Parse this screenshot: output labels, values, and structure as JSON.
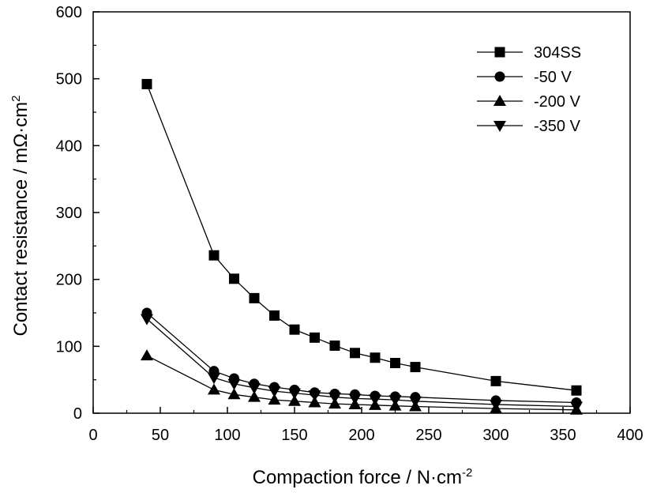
{
  "chart_data": {
    "type": "line",
    "xlabel": "Compaction force / N·cm",
    "xlabel_sup": "-2",
    "ylabel": "Contact resistance / mΩ·cm",
    "ylabel_sup": "2",
    "xlim": [
      0,
      400
    ],
    "ylim": [
      0,
      600
    ],
    "xticks": [
      "0",
      "50",
      "100",
      "150",
      "200",
      "250",
      "300",
      "350",
      "400"
    ],
    "yticks": [
      "0",
      "100",
      "200",
      "300",
      "400",
      "500",
      "600"
    ],
    "grid": false,
    "legend_position": "top-right",
    "x": [
      40,
      90,
      105,
      120,
      135,
      150,
      165,
      180,
      195,
      210,
      225,
      240,
      300,
      360
    ],
    "series": [
      {
        "name": "304SS",
        "marker": "square",
        "values": [
          492,
          236,
          201,
          172,
          146,
          125,
          113,
          101,
          90,
          83,
          75,
          69,
          48,
          34
        ]
      },
      {
        "name": "-50 V",
        "marker": "circle",
        "values": [
          150,
          63,
          52,
          44,
          39,
          35,
          31,
          29,
          28,
          26,
          25,
          24,
          19,
          16
        ]
      },
      {
        "name": "-200 V",
        "marker": "triangle-up",
        "values": [
          86,
          35,
          28,
          24,
          20,
          18,
          16,
          14,
          13,
          12,
          11,
          10,
          7,
          5
        ]
      },
      {
        "name": "-350 V",
        "marker": "triangle-down",
        "values": [
          141,
          53,
          44,
          38,
          33,
          30,
          27,
          24,
          22,
          21,
          20,
          18,
          13,
          10
        ]
      }
    ]
  }
}
